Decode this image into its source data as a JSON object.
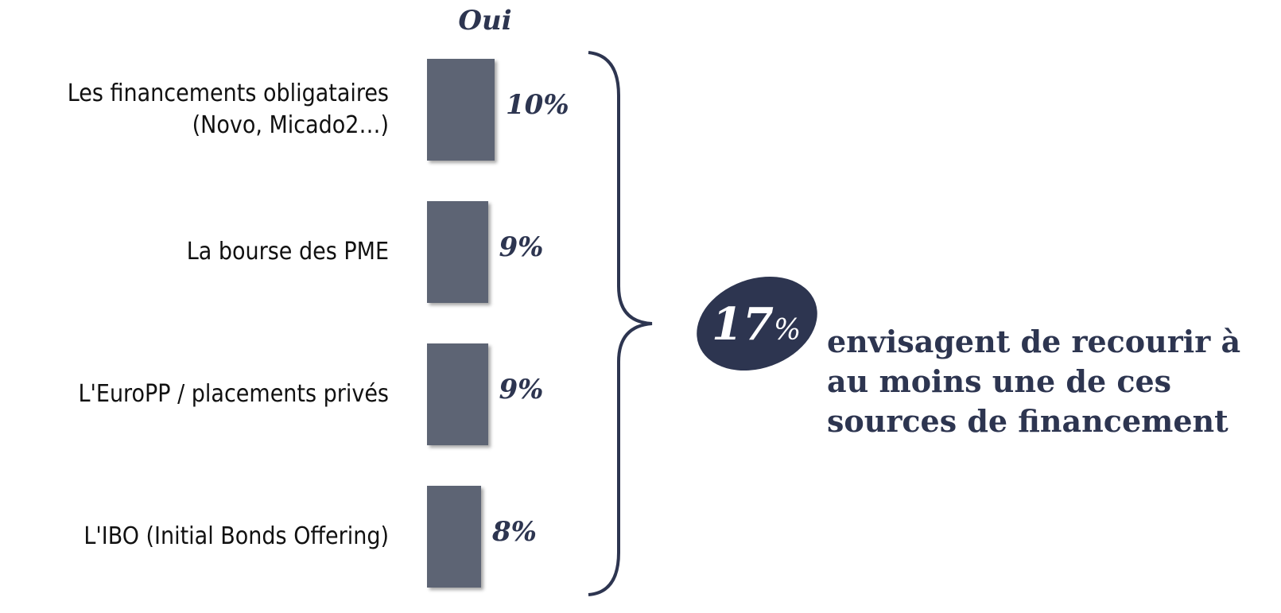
{
  "chart_data": {
    "type": "hbar",
    "series_name": "Oui",
    "categories": [
      "Les financements obligataires\n(Novo, Micado2…)",
      "La bourse des PME",
      "L'EuroPP / placements privés",
      "L'IBO (Initial Bonds Offering)"
    ],
    "values": [
      10,
      9,
      9,
      8
    ],
    "value_labels": [
      "10%",
      "9%",
      "9%",
      "8%"
    ],
    "color": "#5d6474",
    "annotation": {
      "value": 17,
      "unit": "%",
      "text": "envisagent de recourir à\nau moins une de ces\nsources de financement"
    }
  }
}
